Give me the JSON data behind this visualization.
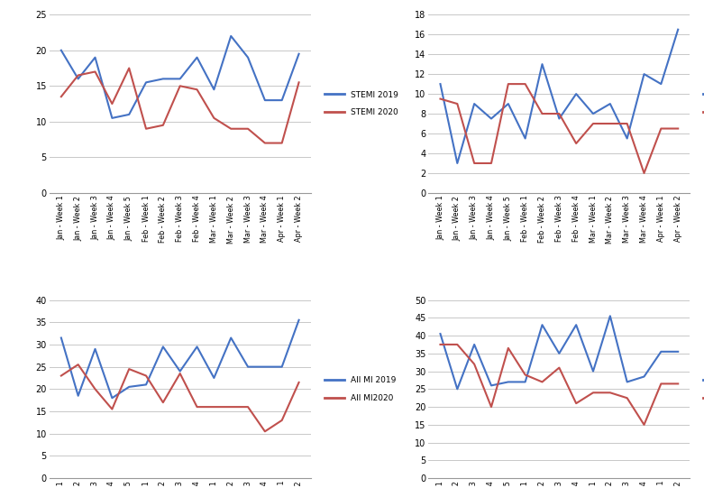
{
  "x_labels": [
    "Jan - Week 1",
    "Jan - Week 2",
    "Jan - Week 3",
    "Jan - Week 4",
    "Jan - Week 5",
    "Feb - Week 1",
    "Feb - Week 2",
    "Feb - Week 3",
    "Feb - Week 4",
    "Mar - Week 1",
    "Mar - Week 2",
    "Mar - Week 3",
    "Mar - Week 4",
    "Apr - Week 1",
    "Apr - Week 2"
  ],
  "stemi_2019": [
    20,
    16,
    19,
    10.5,
    11,
    15.5,
    16,
    16,
    19,
    14.5,
    22,
    19,
    13,
    13,
    19.5
  ],
  "stemi_2020": [
    13.5,
    16.5,
    17,
    12.5,
    17.5,
    9,
    9.5,
    15,
    14.5,
    10.5,
    9,
    9,
    7,
    7,
    15.5
  ],
  "nstemi_2019": [
    11,
    3,
    9,
    7.5,
    9,
    5.5,
    13,
    7.5,
    10,
    8,
    9,
    5.5,
    12,
    11,
    16.5
  ],
  "nstemi_2020": [
    9.5,
    9,
    3,
    3,
    11,
    11,
    8,
    8,
    5,
    7,
    7,
    7,
    2,
    6.5,
    6.5
  ],
  "all_mi_2019": [
    31.5,
    18.5,
    29,
    18,
    20.5,
    21,
    29.5,
    24,
    29.5,
    22.5,
    31.5,
    25,
    25,
    25,
    35.5
  ],
  "all_mi_2020": [
    23,
    25.5,
    20,
    15.5,
    24.5,
    23,
    17,
    23.5,
    16,
    16,
    16,
    16,
    10.5,
    13,
    21.5
  ],
  "all_act_2019": [
    40.5,
    25,
    37.5,
    26,
    27,
    27,
    43,
    35,
    43,
    30,
    45.5,
    27,
    28.5,
    35.5,
    35.5
  ],
  "all_act_2020": [
    37.5,
    37.5,
    32,
    20,
    36.5,
    29,
    27,
    31,
    21,
    24,
    24,
    22.5,
    15,
    26.5,
    26.5
  ],
  "color_2019": "#4472C4",
  "color_2020": "#C0504D",
  "stemi_ylim": [
    0,
    25
  ],
  "stemi_yticks": [
    0,
    5,
    10,
    15,
    20,
    25
  ],
  "nstemi_ylim": [
    0,
    18
  ],
  "nstemi_yticks": [
    0,
    2,
    4,
    6,
    8,
    10,
    12,
    14,
    16,
    18
  ],
  "allmi_ylim": [
    0,
    40
  ],
  "allmi_yticks": [
    0,
    5,
    10,
    15,
    20,
    25,
    30,
    35,
    40
  ],
  "allact_ylim": [
    0,
    50
  ],
  "allact_yticks": [
    0,
    5,
    10,
    15,
    20,
    25,
    30,
    35,
    40,
    45,
    50
  ]
}
